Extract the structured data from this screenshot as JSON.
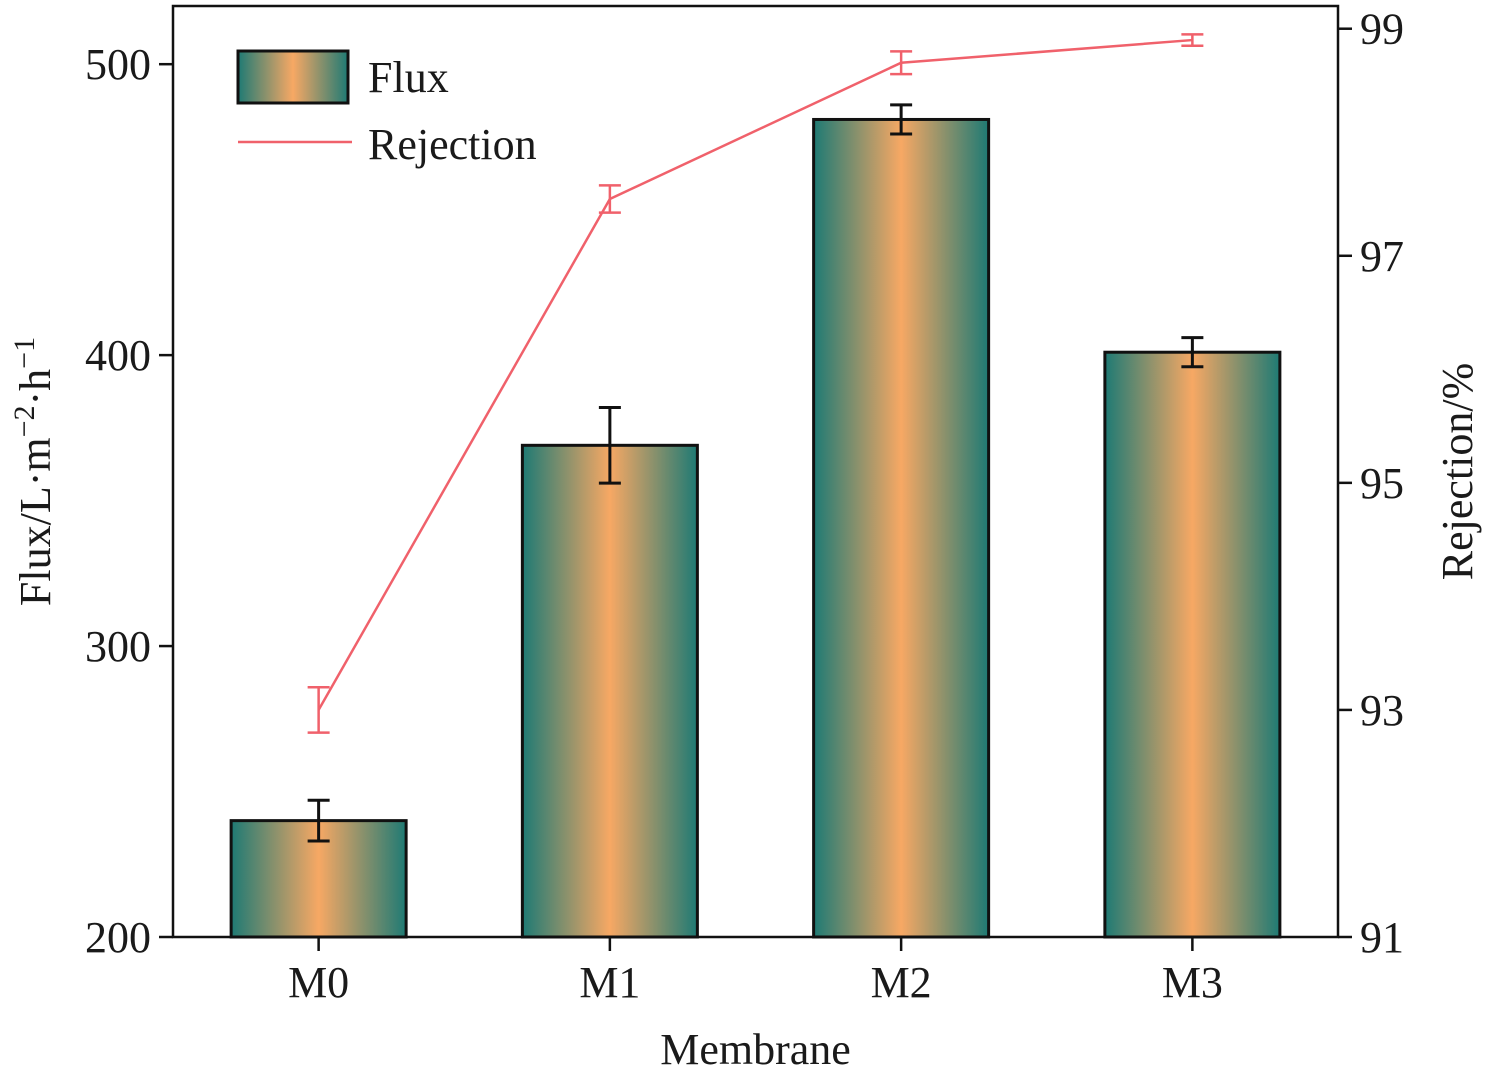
{
  "chart_data": {
    "type": "bar",
    "categories": [
      "M0",
      "M1",
      "M2",
      "M3"
    ],
    "xlabel": "Membrane",
    "ylabel_left": "Flux/L·m⁻²·h⁻¹",
    "ylabel_right": "Rejection/%",
    "ylim_left": [
      200,
      520
    ],
    "yticks_left": [
      "200",
      "300",
      "400",
      "500"
    ],
    "ylim_right": [
      91,
      99.2
    ],
    "yticks_right": [
      "91",
      "93",
      "95",
      "97",
      "99"
    ],
    "grid": false,
    "legend_position": "top-left",
    "series": [
      {
        "name": "Flux",
        "kind": "bar",
        "axis": "left",
        "values": [
          240,
          369,
          481,
          401
        ],
        "errors": [
          7,
          13,
          5,
          5
        ],
        "colors": {
          "edge": "#1e7a74",
          "center": "#f7a864",
          "outline": "#111111"
        }
      },
      {
        "name": "Rejection",
        "kind": "line",
        "axis": "right",
        "values": [
          93.0,
          97.5,
          98.7,
          98.9
        ],
        "errors": [
          0.2,
          0.12,
          0.1,
          0.05
        ],
        "colors": {
          "line": "#f0616b"
        }
      }
    ]
  }
}
